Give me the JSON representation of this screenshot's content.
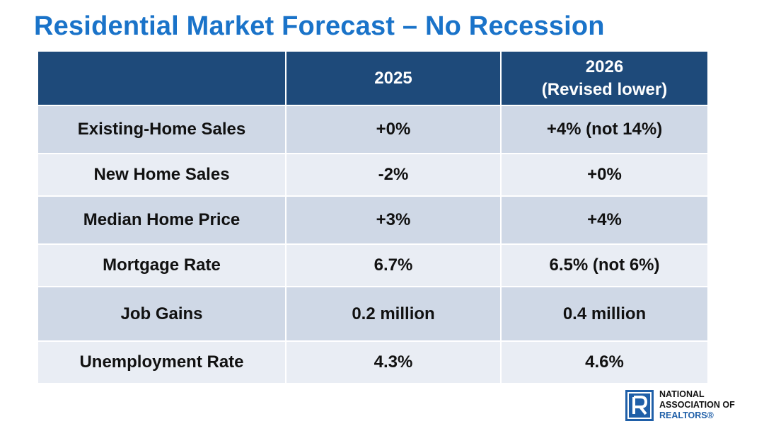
{
  "slide": {
    "title": "Residential Market Forecast – No Recession"
  },
  "table": {
    "headers": {
      "blank": "",
      "col_2025": "2025",
      "col_2026_line1": "2026",
      "col_2026_line2": "(Revised lower)"
    },
    "rows": [
      {
        "label": "Existing-Home Sales",
        "v2025": "+0%",
        "v2026": "+4% (not 14%)"
      },
      {
        "label": "New Home Sales",
        "v2025": "-2%",
        "v2026": "+0%"
      },
      {
        "label": "Median Home Price",
        "v2025": "+3%",
        "v2026": "+4%"
      },
      {
        "label": "Mortgage Rate",
        "v2025": "6.7%",
        "v2026": "6.5% (not 6%)"
      },
      {
        "label": "Job Gains",
        "v2025": "0.2 million",
        "v2026": "0.4 million"
      },
      {
        "label": "Unemployment Rate",
        "v2025": "4.3%",
        "v2026": "4.6%"
      }
    ]
  },
  "logo": {
    "line1": "NATIONAL",
    "line2": "ASSOCIATION OF",
    "line3": "REALTORS®",
    "icon": "realtor-r-icon",
    "color": "#1f5fa8"
  },
  "colors": {
    "title": "#1a73c9",
    "header_bg": "#1e4a7a",
    "row_dark": "#cfd8e6",
    "row_light": "#e9edf4"
  }
}
